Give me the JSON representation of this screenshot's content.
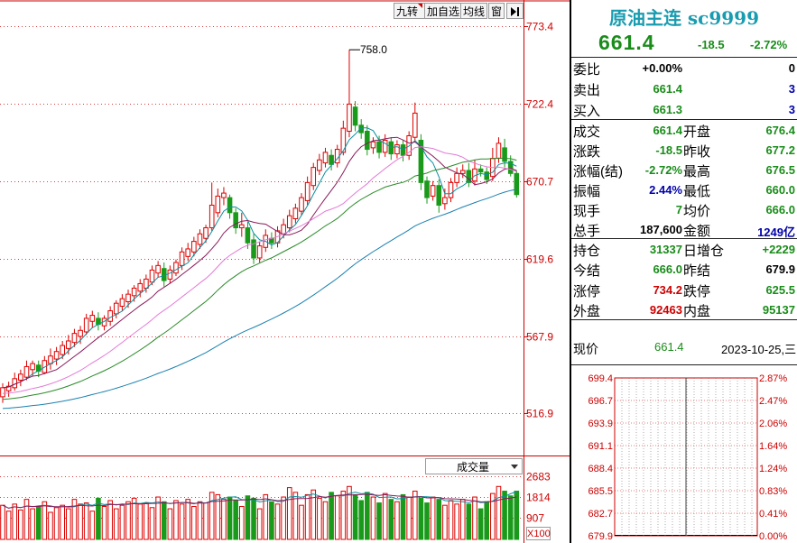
{
  "toolbar": {
    "btn1": "九转",
    "btn2": "加自选",
    "btn3": "均线",
    "btn4": "窗"
  },
  "volume_selector": {
    "label": "成交量",
    "unit": "X100"
  },
  "chart_data": [
    {
      "type": "candlestick",
      "title": "",
      "y_ticks": [
        "773.4",
        "722.4",
        "670.7",
        "619.6",
        "567.9",
        "516.9"
      ],
      "ylim": [
        510,
        785
      ],
      "annotation": "758.0",
      "candles": [
        [
          528,
          534,
          524,
          537
        ],
        [
          532,
          535,
          528,
          538
        ],
        [
          534,
          540,
          532,
          544
        ],
        [
          539,
          543,
          535,
          546
        ],
        [
          541,
          548,
          539,
          552
        ],
        [
          546,
          550,
          542,
          552
        ],
        [
          549,
          545,
          541,
          552
        ],
        [
          544,
          552,
          543,
          555
        ],
        [
          550,
          555,
          546,
          560
        ],
        [
          553,
          558,
          549,
          561
        ],
        [
          556,
          562,
          553,
          565
        ],
        [
          560,
          565,
          556,
          569
        ],
        [
          564,
          570,
          561,
          573
        ],
        [
          568,
          572,
          563,
          575
        ],
        [
          571,
          580,
          569,
          583
        ],
        [
          578,
          582,
          574,
          585
        ],
        [
          580,
          576,
          572,
          584
        ],
        [
          575,
          580,
          572,
          582
        ],
        [
          578,
          585,
          575,
          588
        ],
        [
          583,
          590,
          580,
          592
        ],
        [
          588,
          593,
          585,
          596
        ],
        [
          591,
          596,
          587,
          599
        ],
        [
          595,
          600,
          591,
          602
        ],
        [
          598,
          603,
          594,
          606
        ],
        [
          600,
          606,
          597,
          609
        ],
        [
          604,
          612,
          602,
          615
        ],
        [
          610,
          615,
          607,
          618
        ],
        [
          613,
          605,
          601,
          617
        ],
        [
          606,
          612,
          603,
          615
        ],
        [
          610,
          617,
          608,
          619
        ],
        [
          615,
          624,
          612,
          627
        ],
        [
          621,
          626,
          618,
          630
        ],
        [
          624,
          631,
          621,
          634
        ],
        [
          629,
          636,
          626,
          639
        ],
        [
          633,
          640,
          630,
          642
        ],
        [
          640,
          655,
          638,
          670
        ],
        [
          650,
          661,
          647,
          666
        ],
        [
          660,
          663,
          655,
          667
        ],
        [
          660,
          650,
          646,
          662
        ],
        [
          650,
          640,
          636,
          653
        ],
        [
          640,
          642,
          634,
          650
        ],
        [
          640,
          630,
          626,
          644
        ],
        [
          632,
          620,
          616,
          636
        ],
        [
          620,
          628,
          617,
          631
        ],
        [
          627,
          635,
          624,
          639
        ],
        [
          633,
          630,
          626,
          637
        ],
        [
          630,
          638,
          627,
          641
        ],
        [
          636,
          642,
          633,
          646
        ],
        [
          640,
          648,
          637,
          652
        ],
        [
          646,
          653,
          643,
          656
        ],
        [
          651,
          660,
          648,
          663
        ],
        [
          658,
          670,
          655,
          674
        ],
        [
          668,
          680,
          665,
          683
        ],
        [
          678,
          685,
          675,
          689
        ],
        [
          683,
          690,
          680,
          693
        ],
        [
          688,
          682,
          678,
          692
        ],
        [
          683,
          692,
          680,
          695
        ],
        [
          690,
          706,
          688,
          711
        ],
        [
          704,
          722,
          700,
          758
        ],
        [
          720,
          708,
          704,
          724
        ],
        [
          708,
          703,
          699,
          712
        ],
        [
          704,
          692,
          688,
          708
        ],
        [
          693,
          697,
          689,
          700
        ],
        [
          697,
          690,
          686,
          701
        ],
        [
          690,
          698,
          687,
          702
        ],
        [
          697,
          689,
          685,
          700
        ],
        [
          689,
          695,
          686,
          698
        ],
        [
          695,
          688,
          684,
          698
        ],
        [
          688,
          701,
          685,
          704
        ],
        [
          700,
          716,
          697,
          723
        ],
        [
          698,
          670,
          665,
          702
        ],
        [
          671,
          660,
          656,
          674
        ],
        [
          661,
          668,
          658,
          671
        ],
        [
          668,
          655,
          650,
          672
        ],
        [
          656,
          660,
          652,
          666
        ],
        [
          660,
          670,
          657,
          673
        ],
        [
          670,
          676,
          667,
          680
        ],
        [
          676,
          678,
          673,
          682
        ],
        [
          678,
          670,
          667,
          683
        ],
        [
          671,
          679,
          668,
          685
        ],
        [
          679,
          677,
          674,
          682
        ],
        [
          677,
          672,
          669,
          680
        ],
        [
          674,
          686,
          671,
          693
        ],
        [
          686,
          696,
          683,
          700
        ],
        [
          693,
          684,
          680,
          699
        ],
        [
          684,
          676,
          674,
          688
        ],
        [
          676,
          662,
          660,
          678
        ]
      ],
      "ma_series": [
        {
          "name": "MA5"
        },
        {
          "name": "MA10"
        },
        {
          "name": "MA20"
        },
        {
          "name": "MA30"
        },
        {
          "name": "MA60"
        }
      ]
    },
    {
      "type": "bar",
      "title": "成交量",
      "y_ticks": [
        "2683",
        "1814",
        "907"
      ],
      "ylim": [
        0,
        2683
      ],
      "volumes": [
        1450,
        1200,
        1500,
        1250,
        1700,
        1300,
        1400,
        1600,
        1150,
        1350,
        1450,
        1300,
        1700,
        1500,
        1550,
        1200,
        1750,
        1400,
        1650,
        1300,
        1450,
        1600,
        1750,
        1500,
        1550,
        1350,
        1800,
        1600,
        1300,
        1650,
        1500,
        1700,
        1400,
        1600,
        1550,
        2000,
        1900,
        1700,
        1800,
        1650,
        1400,
        1850,
        1750,
        1300,
        1900,
        1600,
        1500,
        1800,
        2200,
        2000,
        1450,
        1900,
        2100,
        1750,
        1600,
        2000,
        1850,
        2050,
        2250,
        1900,
        1650,
        2000,
        1800,
        1550,
        1950,
        1700,
        1600,
        1900,
        1800,
        2050,
        1750,
        1550,
        1800,
        1700,
        1450,
        1650,
        1500,
        1700,
        1500,
        1800,
        1300,
        1600,
        1950,
        2250,
        2050,
        1850,
        2050
      ],
      "ma_series": [
        {
          "name": "VMA5"
        },
        {
          "name": "VMA10"
        }
      ]
    },
    {
      "type": "line",
      "title": "",
      "y_ticks_left": [
        "699.4",
        "696.7",
        "693.9",
        "691.1",
        "688.4",
        "685.5",
        "682.7",
        "679.9"
      ],
      "y_ticks_right": [
        "2.87%",
        "2.47%",
        "2.06%",
        "1.64%",
        "1.24%",
        "0.83%",
        "0.41%",
        "0.00%"
      ],
      "ylim": [
        679.9,
        699.4
      ]
    }
  ],
  "quote": {
    "title": "原油主连 sc9999",
    "price": "661.4",
    "change": "-18.5",
    "change_pct": "-2.72%",
    "rows": [
      {
        "l1": "委比",
        "v1": "+0.00%",
        "l2": "",
        "v2": "0",
        "c1": "black",
        "c2": "black"
      },
      {
        "l1": "卖出",
        "v1": "661.4",
        "l2": "",
        "v2": "3",
        "c1": "green",
        "c2": "blue"
      },
      {
        "l1": "买入",
        "v1": "661.3",
        "l2": "",
        "v2": "3",
        "c1": "green",
        "c2": "blue"
      },
      {
        "l1": "成交",
        "v1": "661.4",
        "l2": "开盘",
        "v2": "676.4",
        "c1": "green",
        "c2": "green"
      },
      {
        "l1": "涨跌",
        "v1": "-18.5",
        "l2": "昨收",
        "v2": "677.2",
        "c1": "green",
        "c2": "green"
      },
      {
        "l1": "涨幅(结)",
        "v1": "-2.72%",
        "l2": "最高",
        "v2": "676.5",
        "c1": "green",
        "c2": "green"
      },
      {
        "l1": "振幅",
        "v1": "2.44%",
        "l2": "最低",
        "v2": "660.0",
        "c1": "blue",
        "c2": "green"
      },
      {
        "l1": "现手",
        "v1": "7",
        "l2": "均价",
        "v2": "666.0",
        "c1": "green",
        "c2": "green"
      },
      {
        "l1": "总手",
        "v1": "187,600",
        "l2": "金额",
        "v2": "1249亿",
        "c1": "black",
        "c2": "blue"
      },
      {
        "l1": "持仓",
        "v1": "31337",
        "l2": "日增仓",
        "v2": "+2229",
        "c1": "green",
        "c2": "green"
      },
      {
        "l1": "今结",
        "v1": "666.0",
        "l2": "昨结",
        "v2": "679.9",
        "c1": "green",
        "c2": "black"
      },
      {
        "l1": "涨停",
        "v1": "734.2",
        "l2": "跌停",
        "v2": "625.5",
        "c1": "red",
        "c2": "green"
      },
      {
        "l1": "外盘",
        "v1": "92463",
        "l2": "内盘",
        "v2": "95137",
        "c1": "red",
        "c2": "green"
      }
    ],
    "current_label": "现价",
    "current_value": "661.4",
    "date": "2023-10-25,三"
  }
}
